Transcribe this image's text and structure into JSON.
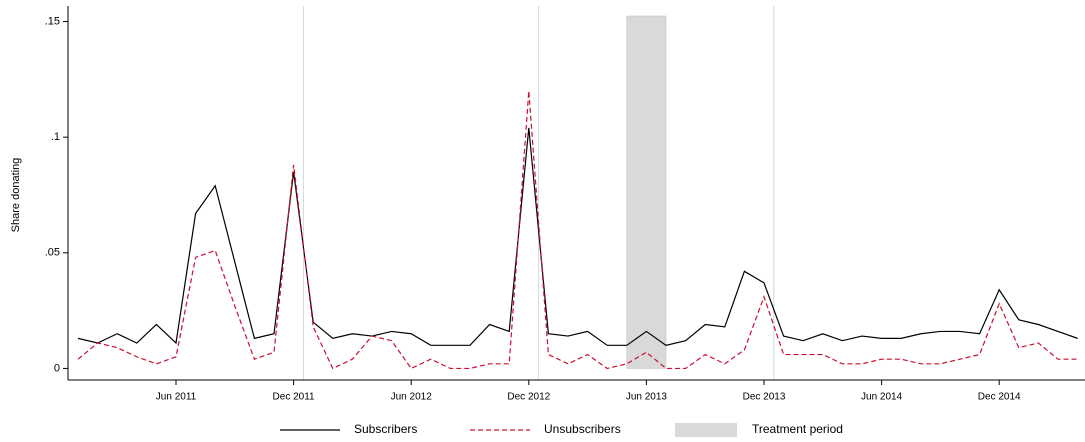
{
  "chart_data": {
    "type": "line",
    "y_label": "Share donating",
    "categories": [
      null,
      null,
      null,
      null,
      null,
      "Jun 2011",
      null,
      null,
      null,
      null,
      null,
      "Dec 2011",
      null,
      null,
      null,
      null,
      null,
      "Jun 2012",
      null,
      null,
      null,
      null,
      null,
      "Dec 2012",
      null,
      null,
      null,
      null,
      null,
      "Jun 2013",
      null,
      null,
      null,
      null,
      null,
      "Dec 2013",
      null,
      null,
      null,
      null,
      null,
      "Jun 2014",
      null,
      null,
      null,
      null,
      null,
      "Dec 2014",
      null,
      null,
      null,
      null
    ],
    "series": [
      {
        "name": "Subscribers",
        "color": "#000000",
        "dashed": false,
        "values": [
          0.013,
          0.011,
          0.015,
          0.011,
          0.019,
          0.011,
          0.067,
          0.079,
          0.046,
          0.013,
          0.015,
          0.085,
          0.02,
          0.013,
          0.015,
          0.014,
          0.016,
          0.015,
          0.01,
          0.01,
          0.01,
          0.019,
          0.016,
          0.104,
          0.015,
          0.014,
          0.016,
          0.01,
          0.01,
          0.016,
          0.01,
          0.012,
          0.019,
          0.018,
          0.042,
          0.037,
          0.014,
          0.012,
          0.015,
          0.012,
          0.014,
          0.013,
          0.013,
          0.015,
          0.016,
          0.016,
          0.015,
          0.034,
          0.021,
          0.019,
          0.016,
          0.013
        ]
      },
      {
        "name": "Unsubscribers",
        "color": "#c8102e",
        "dashed": true,
        "values": [
          0.004,
          0.011,
          0.009,
          0.005,
          0.002,
          0.005,
          0.048,
          0.051,
          0.027,
          0.004,
          0.007,
          0.088,
          0.018,
          0,
          0.004,
          0.014,
          0.012,
          0,
          0.004,
          0,
          0,
          0.002,
          0.002,
          0.12,
          0.006,
          0.002,
          0.006,
          0,
          0.002,
          0.007,
          0,
          0,
          0.006,
          0.002,
          0.008,
          0.031,
          0.006,
          0.006,
          0.006,
          0.002,
          0.002,
          0.004,
          0.004,
          0.002,
          0.002,
          0.004,
          0.006,
          0.028,
          0.009,
          0.011,
          0.004,
          0.004
        ]
      }
    ],
    "shaded_region": {
      "name": "Treatment period",
      "from": 28,
      "to": 30,
      "color": "#d9d9d9"
    },
    "reference_lines": [
      11.5,
      23.5,
      35.5
    ],
    "ylim": [
      -0.005,
      0.155
    ],
    "yticks": [
      {
        "value": 0,
        "label": "0"
      },
      {
        "value": 0.05,
        "label": ".05"
      },
      {
        "value": 0.1,
        "label": ".1"
      },
      {
        "value": 0.15,
        "label": ".15"
      }
    ]
  }
}
